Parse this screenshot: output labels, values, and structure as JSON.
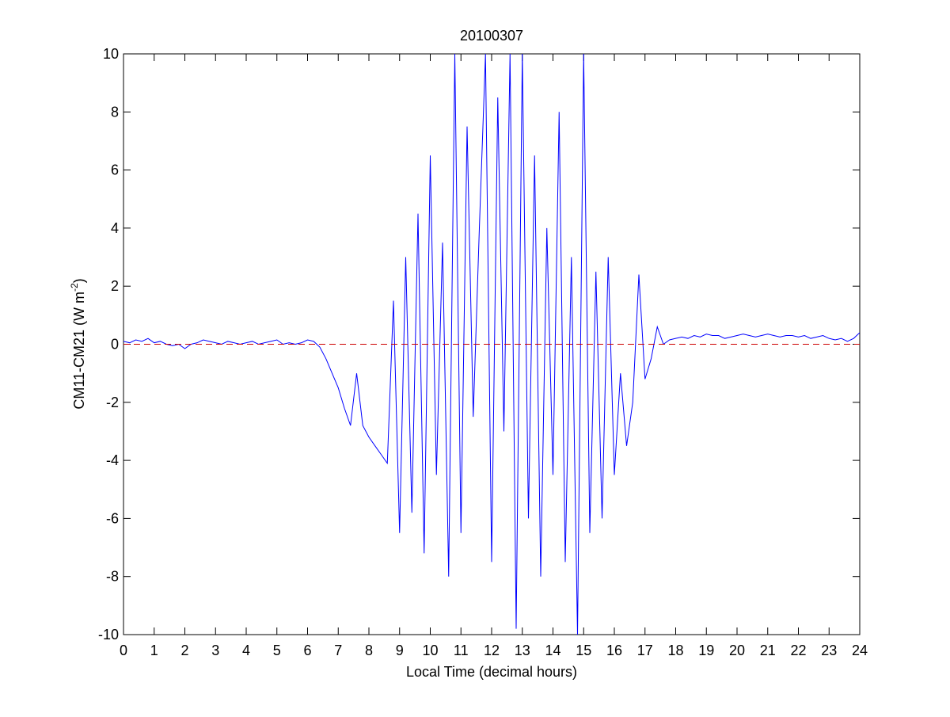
{
  "chart_data": {
    "type": "line",
    "title": "20100307",
    "xlabel": "Local Time (decimal hours)",
    "ylabel": [
      "CM11-CM21 (W m",
      "-2",
      ")"
    ],
    "x": [
      0,
      0.2,
      0.4,
      0.6,
      0.8,
      1,
      1.2,
      1.4,
      1.6,
      1.8,
      2,
      2.2,
      2.4,
      2.6,
      2.8,
      3,
      3.2,
      3.4,
      3.6,
      3.8,
      4,
      4.2,
      4.4,
      4.6,
      4.8,
      5,
      5.2,
      5.4,
      5.6,
      5.8,
      6,
      6.2,
      6.4,
      6.6,
      6.8,
      7,
      7.2,
      7.4,
      7.6,
      7.8,
      8,
      8.2,
      8.4,
      8.6,
      8.8,
      9,
      9.2,
      9.4,
      9.6,
      9.8,
      10,
      10.2,
      10.4,
      10.6,
      10.8,
      11,
      11.2,
      11.4,
      11.6,
      11.8,
      12,
      12.2,
      12.4,
      12.6,
      12.8,
      13,
      13.2,
      13.4,
      13.6,
      13.8,
      14,
      14.2,
      14.4,
      14.6,
      14.8,
      15,
      15.2,
      15.4,
      15.6,
      15.8,
      16,
      16.2,
      16.4,
      16.6,
      16.8,
      17,
      17.2,
      17.4,
      17.6,
      17.8,
      18,
      18.2,
      18.4,
      18.6,
      18.8,
      19,
      19.2,
      19.4,
      19.6,
      19.8,
      20,
      20.2,
      20.4,
      20.6,
      20.8,
      21,
      21.2,
      21.4,
      21.6,
      21.8,
      22,
      22.2,
      22.4,
      22.6,
      22.8,
      23,
      23.2,
      23.4,
      23.6,
      23.8,
      24
    ],
    "series": [
      {
        "color": "#0000ff",
        "values": [
          0.1,
          0.05,
          0.15,
          0.1,
          0.2,
          0.05,
          0.1,
          0,
          -0.05,
          0,
          -0.15,
          0,
          0.05,
          0.15,
          0.1,
          0.05,
          0,
          0.1,
          0.05,
          0,
          0.05,
          0.1,
          0,
          0.05,
          0.1,
          0.15,
          0,
          0.05,
          0,
          0.05,
          0.15,
          0.1,
          -0.1,
          -0.5,
          -1,
          -1.5,
          -2.2,
          -2.8,
          -1,
          -2.8,
          -3.2,
          -3.5,
          -3.8,
          -4.1,
          1.5,
          -6.5,
          3,
          -5.8,
          4.5,
          -7.2,
          6.5,
          -4.5,
          3.5,
          -8,
          10,
          -6.5,
          7.5,
          -2.5,
          4,
          10,
          -7.5,
          8.5,
          -3,
          10,
          -9.8,
          10,
          -6,
          6.5,
          -8,
          4,
          -4.5,
          8,
          -7.5,
          3,
          -10,
          10,
          -6.5,
          2.5,
          -6,
          3,
          -4.5,
          -1,
          -3.5,
          -2,
          2.4,
          -1.2,
          -0.5,
          0.6,
          0,
          0.15,
          0.2,
          0.25,
          0.2,
          0.3,
          0.25,
          0.35,
          0.3,
          0.3,
          0.2,
          0.25,
          0.3,
          0.35,
          0.3,
          0.25,
          0.3,
          0.35,
          0.3,
          0.25,
          0.3,
          0.3,
          0.25,
          0.3,
          0.2,
          0.25,
          0.3,
          0.2,
          0.15,
          0.2,
          0.1,
          0.2,
          0.4
        ]
      }
    ],
    "reference_line": {
      "value": 0,
      "color": "#cc0000"
    },
    "xlim": [
      0,
      24
    ],
    "xticks": [
      0,
      1,
      2,
      3,
      4,
      5,
      6,
      7,
      8,
      9,
      10,
      11,
      12,
      13,
      14,
      15,
      16,
      17,
      18,
      19,
      20,
      21,
      22,
      23,
      24
    ],
    "ylim": [
      -10,
      10
    ],
    "yticks": [
      -10,
      -8,
      -6,
      -4,
      -2,
      0,
      2,
      4,
      6,
      8,
      10
    ]
  }
}
